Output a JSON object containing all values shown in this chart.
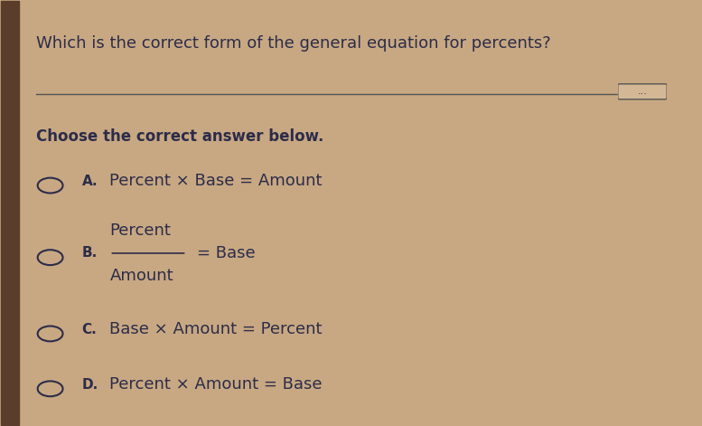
{
  "title": "Which is the correct form of the general equation for percents?",
  "subtitle": "Choose the correct answer below.",
  "bg_color": "#c8a882",
  "text_color": "#1a1a2e",
  "dark_text": "#2c2c4a",
  "options": [
    {
      "label": "A.",
      "text": "Percent × Base = Amount",
      "fraction": false
    },
    {
      "label": "B.",
      "numerator": "Percent",
      "denominator": "Amount",
      "suffix": "= Base",
      "fraction": true
    },
    {
      "label": "C.",
      "text": "Base × Amount = Percent",
      "fraction": false
    },
    {
      "label": "D.",
      "text": "Percent × Amount = Base",
      "fraction": false
    }
  ],
  "separator_color": "#555555",
  "circle_color": "#2c2c4a",
  "title_fontsize": 13,
  "subtitle_fontsize": 12,
  "option_fontsize": 13,
  "label_fontsize": 11
}
